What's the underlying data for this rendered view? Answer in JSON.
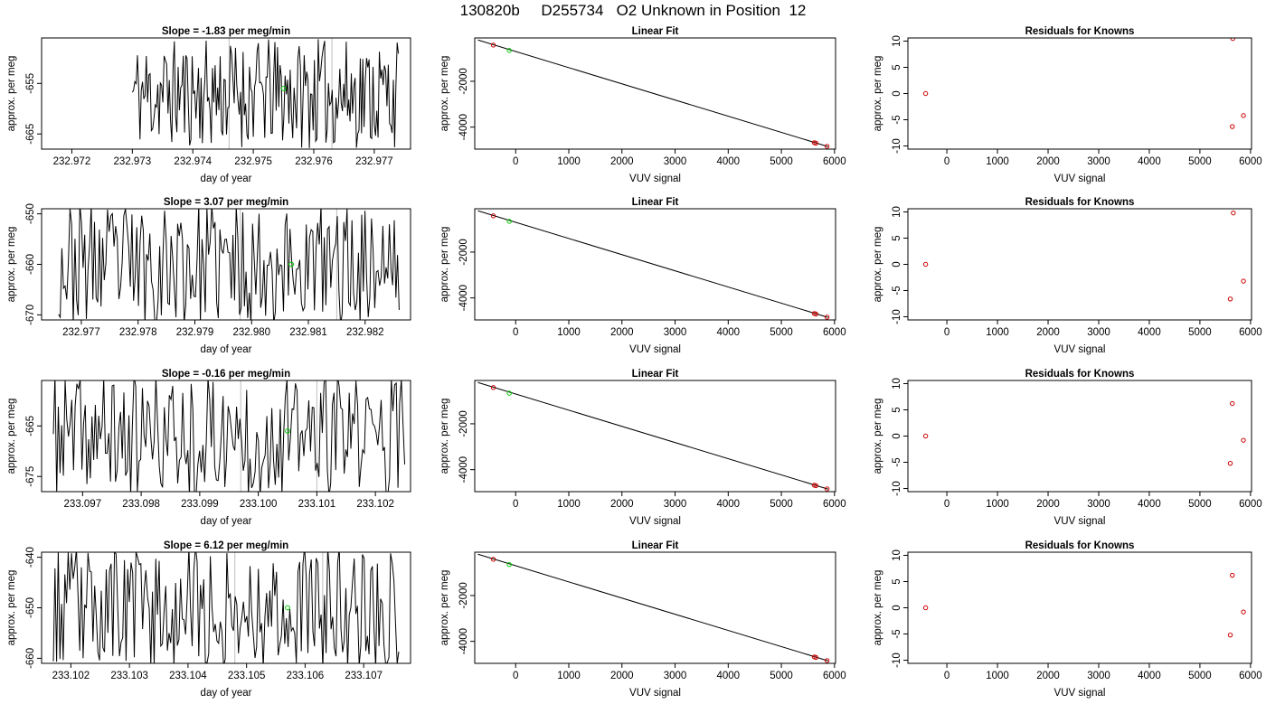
{
  "figure": {
    "title": "130820b     D255734   O2 Unknown in Position  12"
  },
  "chart_data": [
    {
      "type": "line",
      "panel": "time-series",
      "row": 1,
      "title": "Slope =  -1.83  per meg/min",
      "xlabel": "day of year",
      "ylabel": "approx. per meg",
      "xlim": [
        232.9715,
        232.9776
      ],
      "ylim": [
        -668,
        -646
      ],
      "xticks": [
        232.972,
        232.973,
        232.974,
        232.975,
        232.976,
        232.977
      ],
      "xtick_labels": [
        "232.972",
        "232.973",
        "232.974",
        "232.975",
        "232.976",
        "232.977"
      ],
      "yticks": [
        -665,
        -655
      ],
      "ytick_labels": [
        "-665",
        "-655"
      ],
      "vlines": [
        232.9746,
        232.9763
      ],
      "marker": {
        "x": 232.9755,
        "y": -656,
        "color": "#00cc00"
      },
      "series_start": 232.973,
      "series_end": 232.9774,
      "series_mean": -657,
      "series_amp": 8,
      "seed": 11,
      "line_color": "#000000",
      "vline_color": "#bebebe"
    },
    {
      "type": "scatter",
      "panel": "linear-fit",
      "row": 1,
      "title": "Linear Fit",
      "xlabel": "VUV signal",
      "ylabel": "approx. per meg",
      "xlim": [
        -770,
        6020
      ],
      "ylim": [
        -4960,
        -110
      ],
      "xticks": [
        0,
        1000,
        2000,
        3000,
        4000,
        5000,
        6000
      ],
      "xtick_labels": [
        "0",
        "1000",
        "2000",
        "3000",
        "4000",
        "5000",
        "6000"
      ],
      "yticks": [
        -4000,
        -2000
      ],
      "ytick_labels": [
        "-4000",
        "-2000"
      ],
      "fit_line": {
        "x": [
          -710,
          5880
        ],
        "y": [
          -200,
          -4850
        ]
      },
      "knowns": {
        "x": [
          -420,
          5620,
          5650,
          5860
        ],
        "y": [
          -420,
          -4680,
          -4700,
          -4840
        ],
        "color": "#cc0000"
      },
      "unknown": {
        "x": [
          -120
        ],
        "y": [
          -657
        ],
        "color": "#00cc00"
      }
    },
    {
      "type": "scatter",
      "panel": "residuals",
      "row": 1,
      "title": "Residuals for Knowns",
      "xlabel": "VUV signal",
      "ylabel": "approx. per meg",
      "xlim": [
        -770,
        6020
      ],
      "ylim": [
        -10.6,
        10.6
      ],
      "xticks": [
        0,
        1000,
        2000,
        3000,
        4000,
        5000,
        6000
      ],
      "xtick_labels": [
        "0",
        "1000",
        "2000",
        "3000",
        "4000",
        "5000",
        "6000"
      ],
      "yticks": [
        -10,
        -5,
        0,
        5,
        10
      ],
      "ytick_labels": [
        "-10",
        "-5",
        "0",
        "5",
        "10"
      ],
      "points": {
        "x": [
          -420,
          5640,
          5650,
          5860
        ],
        "y": [
          0,
          -6.3,
          10.5,
          -4.2
        ],
        "color": "#cc0000"
      }
    },
    {
      "type": "line",
      "panel": "time-series",
      "row": 2,
      "title": "Slope =  3.07  per meg/min",
      "xlabel": "day of year",
      "ylabel": "approx. per meg",
      "xlim": [
        232.9763,
        232.9828
      ],
      "ylim": [
        -671,
        -649
      ],
      "xticks": [
        232.977,
        232.978,
        232.979,
        232.98,
        232.981,
        232.982
      ],
      "xtick_labels": [
        "232.977",
        "232.978",
        "232.979",
        "232.980",
        "232.981",
        "232.982"
      ],
      "yticks": [
        -670,
        -660,
        -650
      ],
      "ytick_labels": [
        "-670",
        "-660",
        "-650"
      ],
      "vlines": [
        232.9798,
        232.9815
      ],
      "marker": {
        "x": 232.9807,
        "y": -660,
        "color": "#00cc00"
      },
      "series_start": 232.9766,
      "series_end": 232.9826,
      "series_mean": -660,
      "series_amp": 9,
      "seed": 23,
      "line_color": "#000000",
      "vline_color": "#bebebe"
    },
    {
      "type": "scatter",
      "panel": "linear-fit",
      "row": 2,
      "title": "Linear Fit",
      "xlabel": "VUV signal",
      "ylabel": "approx. per meg",
      "xlim": [
        -770,
        6020
      ],
      "ylim": [
        -4960,
        -110
      ],
      "xticks": [
        0,
        1000,
        2000,
        3000,
        4000,
        5000,
        6000
      ],
      "xtick_labels": [
        "0",
        "1000",
        "2000",
        "3000",
        "4000",
        "5000",
        "6000"
      ],
      "yticks": [
        -4000,
        -2000
      ],
      "ytick_labels": [
        "-4000",
        "-2000"
      ],
      "fit_line": {
        "x": [
          -710,
          5880
        ],
        "y": [
          -200,
          -4850
        ]
      },
      "knowns": {
        "x": [
          -420,
          5620,
          5650,
          5860
        ],
        "y": [
          -420,
          -4680,
          -4700,
          -4840
        ],
        "color": "#cc0000"
      },
      "unknown": {
        "x": [
          -120
        ],
        "y": [
          -660
        ],
        "color": "#00cc00"
      }
    },
    {
      "type": "scatter",
      "panel": "residuals",
      "row": 2,
      "title": "Residuals for Knowns",
      "xlabel": "VUV signal",
      "ylabel": "approx. per meg",
      "xlim": [
        -770,
        6020
      ],
      "ylim": [
        -10.6,
        10.6
      ],
      "xticks": [
        0,
        1000,
        2000,
        3000,
        4000,
        5000,
        6000
      ],
      "xtick_labels": [
        "0",
        "1000",
        "2000",
        "3000",
        "4000",
        "5000",
        "6000"
      ],
      "yticks": [
        -10,
        -5,
        0,
        5,
        10
      ],
      "ytick_labels": [
        "-10",
        "-5",
        "0",
        "5",
        "10"
      ],
      "points": {
        "x": [
          -420,
          5600,
          5660,
          5860
        ],
        "y": [
          0,
          -6.6,
          9.8,
          -3.2
        ],
        "color": "#cc0000"
      }
    },
    {
      "type": "line",
      "panel": "time-series",
      "row": 3,
      "title": "Slope =  -0.16  per meg/min",
      "xlabel": "day of year",
      "ylabel": "approx. per meg",
      "xlim": [
        233.0963,
        233.1026
      ],
      "ylim": [
        -678,
        -656
      ],
      "xticks": [
        233.097,
        233.098,
        233.099,
        233.1,
        233.101,
        233.102
      ],
      "xtick_labels": [
        "233.097",
        "233.098",
        "233.099",
        "233.100",
        "233.101",
        "233.102"
      ],
      "yticks": [
        -675,
        -665
      ],
      "ytick_labels": [
        "-675",
        "-665"
      ],
      "vlines": [
        233.0997,
        233.101
      ],
      "marker": {
        "x": 233.1005,
        "y": -666,
        "color": "#00cc00"
      },
      "series_start": 233.0965,
      "series_end": 233.1025,
      "series_mean": -667,
      "series_amp": 9,
      "seed": 37,
      "line_color": "#000000",
      "vline_color": "#bebebe"
    },
    {
      "type": "scatter",
      "panel": "linear-fit",
      "row": 3,
      "title": "Linear Fit",
      "xlabel": "VUV signal",
      "ylabel": "approx. per meg",
      "xlim": [
        -770,
        6020
      ],
      "ylim": [
        -4960,
        -110
      ],
      "xticks": [
        0,
        1000,
        2000,
        3000,
        4000,
        5000,
        6000
      ],
      "xtick_labels": [
        "0",
        "1000",
        "2000",
        "3000",
        "4000",
        "5000",
        "6000"
      ],
      "yticks": [
        -4000,
        -2000
      ],
      "ytick_labels": [
        "-4000",
        "-2000"
      ],
      "fit_line": {
        "x": [
          -710,
          5880
        ],
        "y": [
          -200,
          -4850
        ]
      },
      "knowns": {
        "x": [
          -420,
          5620,
          5650,
          5860
        ],
        "y": [
          -420,
          -4680,
          -4700,
          -4840
        ],
        "color": "#cc0000"
      },
      "unknown": {
        "x": [
          -120
        ],
        "y": [
          -667
        ],
        "color": "#00cc00"
      }
    },
    {
      "type": "scatter",
      "panel": "residuals",
      "row": 3,
      "title": "Residuals for Knowns",
      "xlabel": "VUV signal",
      "ylabel": "approx. per meg",
      "xlim": [
        -770,
        6020
      ],
      "ylim": [
        -10.6,
        10.6
      ],
      "xticks": [
        0,
        1000,
        2000,
        3000,
        4000,
        5000,
        6000
      ],
      "xtick_labels": [
        "0",
        "1000",
        "2000",
        "3000",
        "4000",
        "5000",
        "6000"
      ],
      "yticks": [
        -10,
        -5,
        0,
        5,
        10
      ],
      "ytick_labels": [
        "-10",
        "-5",
        "0",
        "5",
        "10"
      ],
      "points": {
        "x": [
          -420,
          5600,
          5640,
          5860
        ],
        "y": [
          0,
          -5.2,
          6.2,
          -0.8
        ],
        "color": "#cc0000"
      }
    },
    {
      "type": "line",
      "panel": "time-series",
      "row": 4,
      "title": "Slope =  6.12  per meg/min",
      "xlabel": "day of year",
      "ylabel": "approx. per meg",
      "xlim": [
        233.1015,
        233.1078
      ],
      "ylim": [
        -661,
        -639
      ],
      "xticks": [
        233.102,
        233.103,
        233.104,
        233.105,
        233.106,
        233.107
      ],
      "xtick_labels": [
        "233.102",
        "233.103",
        "233.104",
        "233.105",
        "233.106",
        "233.107"
      ],
      "yticks": [
        -660,
        -650,
        -640
      ],
      "ytick_labels": [
        "-660",
        "-650",
        "-640"
      ],
      "vlines": [
        233.1048,
        233.1063
      ],
      "marker": {
        "x": 233.1057,
        "y": -650,
        "color": "#00cc00"
      },
      "series_start": 233.1017,
      "series_end": 233.1076,
      "series_mean": -650,
      "series_amp": 9,
      "seed": 53,
      "line_color": "#000000",
      "vline_color": "#bebebe"
    },
    {
      "type": "scatter",
      "panel": "linear-fit",
      "row": 4,
      "title": "Linear Fit",
      "xlabel": "VUV signal",
      "ylabel": "approx. per meg",
      "xlim": [
        -770,
        6020
      ],
      "ylim": [
        -4960,
        -110
      ],
      "xticks": [
        0,
        1000,
        2000,
        3000,
        4000,
        5000,
        6000
      ],
      "xtick_labels": [
        "0",
        "1000",
        "2000",
        "3000",
        "4000",
        "5000",
        "6000"
      ],
      "yticks": [
        -4000,
        -2000
      ],
      "ytick_labels": [
        "-4000",
        "-2000"
      ],
      "fit_line": {
        "x": [
          -710,
          5880
        ],
        "y": [
          -200,
          -4850
        ]
      },
      "knowns": {
        "x": [
          -420,
          5620,
          5650,
          5860
        ],
        "y": [
          -420,
          -4680,
          -4700,
          -4840
        ],
        "color": "#cc0000"
      },
      "unknown": {
        "x": [
          -120
        ],
        "y": [
          -650
        ],
        "color": "#00cc00"
      }
    },
    {
      "type": "scatter",
      "panel": "residuals",
      "row": 4,
      "title": "Residuals for Knowns",
      "xlabel": "VUV signal",
      "ylabel": "approx. per meg",
      "xlim": [
        -770,
        6020
      ],
      "ylim": [
        -10.6,
        10.6
      ],
      "xticks": [
        0,
        1000,
        2000,
        3000,
        4000,
        5000,
        6000
      ],
      "xtick_labels": [
        "0",
        "1000",
        "2000",
        "3000",
        "4000",
        "5000",
        "6000"
      ],
      "yticks": [
        -10,
        -5,
        0,
        5,
        10
      ],
      "ytick_labels": [
        "-10",
        "-5",
        "0",
        "5",
        "10"
      ],
      "points": {
        "x": [
          -420,
          5600,
          5640,
          5860
        ],
        "y": [
          0,
          -5.2,
          6.2,
          -0.8
        ],
        "color": "#cc0000"
      }
    }
  ]
}
